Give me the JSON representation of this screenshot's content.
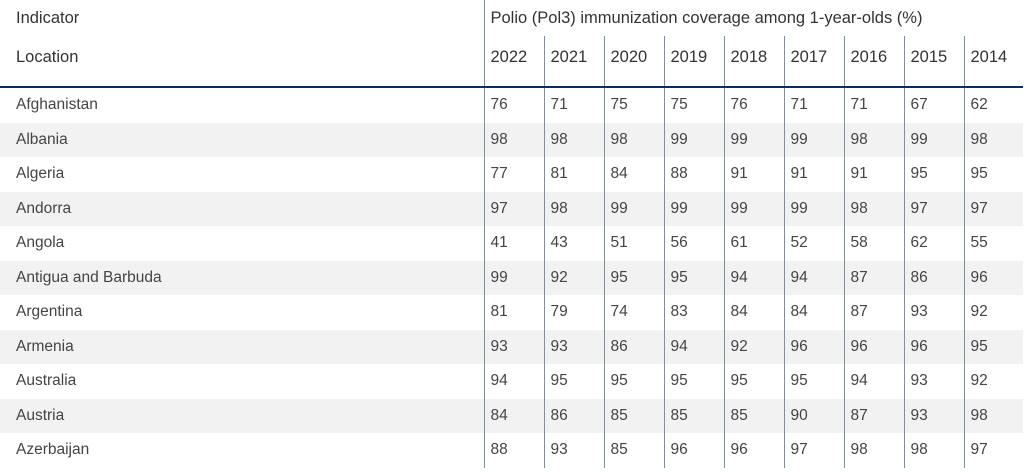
{
  "header": {
    "indicator_label": "Indicator",
    "location_label": "Location",
    "indicator_title": "Polio (Pol3) immunization coverage among 1-year-olds (%)",
    "years": [
      "2022",
      "2021",
      "2020",
      "2019",
      "2018",
      "2017",
      "2016",
      "2015",
      "2014"
    ]
  },
  "rows": [
    {
      "location": "Afghanistan",
      "values": [
        "76",
        "71",
        "75",
        "75",
        "76",
        "71",
        "71",
        "67",
        "62"
      ]
    },
    {
      "location": "Albania",
      "values": [
        "98",
        "98",
        "98",
        "99",
        "99",
        "99",
        "98",
        "99",
        "98"
      ]
    },
    {
      "location": "Algeria",
      "values": [
        "77",
        "81",
        "84",
        "88",
        "91",
        "91",
        "91",
        "95",
        "95"
      ]
    },
    {
      "location": "Andorra",
      "values": [
        "97",
        "98",
        "99",
        "99",
        "99",
        "99",
        "98",
        "97",
        "97"
      ]
    },
    {
      "location": "Angola",
      "values": [
        "41",
        "43",
        "51",
        "56",
        "61",
        "52",
        "58",
        "62",
        "55"
      ]
    },
    {
      "location": "Antigua and Barbuda",
      "values": [
        "99",
        "92",
        "95",
        "95",
        "94",
        "94",
        "87",
        "86",
        "96"
      ]
    },
    {
      "location": "Argentina",
      "values": [
        "81",
        "79",
        "74",
        "83",
        "84",
        "84",
        "87",
        "93",
        "92"
      ]
    },
    {
      "location": "Armenia",
      "values": [
        "93",
        "93",
        "86",
        "94",
        "92",
        "96",
        "96",
        "96",
        "95"
      ]
    },
    {
      "location": "Australia",
      "values": [
        "94",
        "95",
        "95",
        "95",
        "95",
        "95",
        "94",
        "93",
        "92"
      ]
    },
    {
      "location": "Austria",
      "values": [
        "84",
        "86",
        "85",
        "85",
        "85",
        "90",
        "87",
        "93",
        "98"
      ]
    },
    {
      "location": "Azerbaijan",
      "values": [
        "88",
        "93",
        "85",
        "96",
        "96",
        "97",
        "98",
        "98",
        "97"
      ]
    }
  ]
}
